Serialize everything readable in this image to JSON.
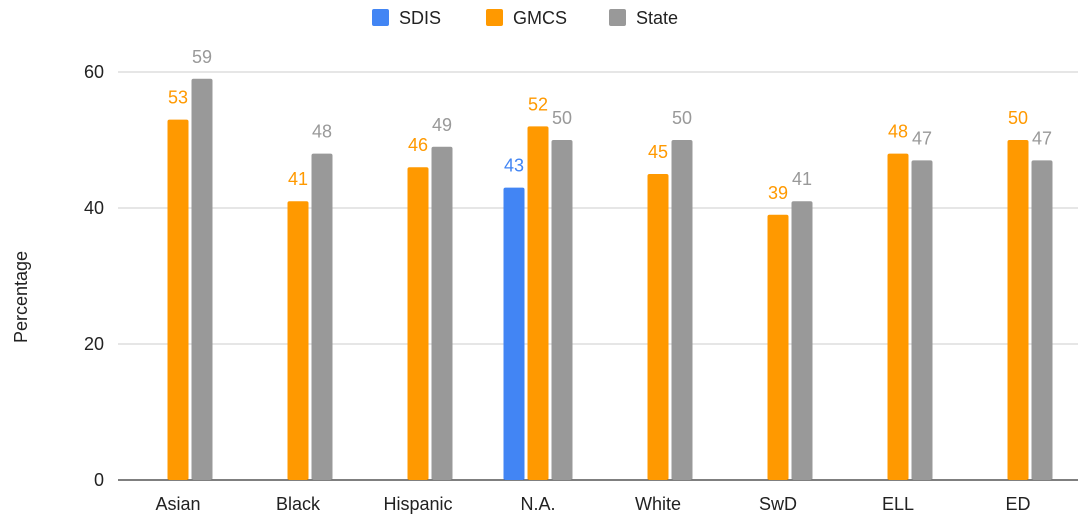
{
  "chart_data": {
    "type": "bar",
    "title": "",
    "xlabel": "",
    "ylabel": "Percentage",
    "ylim": [
      0,
      60
    ],
    "yticks": [
      0,
      20,
      40,
      60
    ],
    "grid": true,
    "legend_position": "top",
    "categories": [
      "Asian",
      "Black",
      "Hispanic",
      "N.A.",
      "White",
      "SwD",
      "ELL",
      "ED"
    ],
    "series": [
      {
        "name": "SDIS",
        "color": "#4285F4",
        "values": [
          null,
          null,
          null,
          43,
          null,
          null,
          null,
          null
        ]
      },
      {
        "name": "GMCS",
        "color": "#FF9900",
        "values": [
          53,
          41,
          46,
          52,
          45,
          39,
          48,
          50
        ]
      },
      {
        "name": "State",
        "color": "#999999",
        "values": [
          59,
          48,
          49,
          50,
          50,
          41,
          47,
          47
        ]
      }
    ]
  }
}
